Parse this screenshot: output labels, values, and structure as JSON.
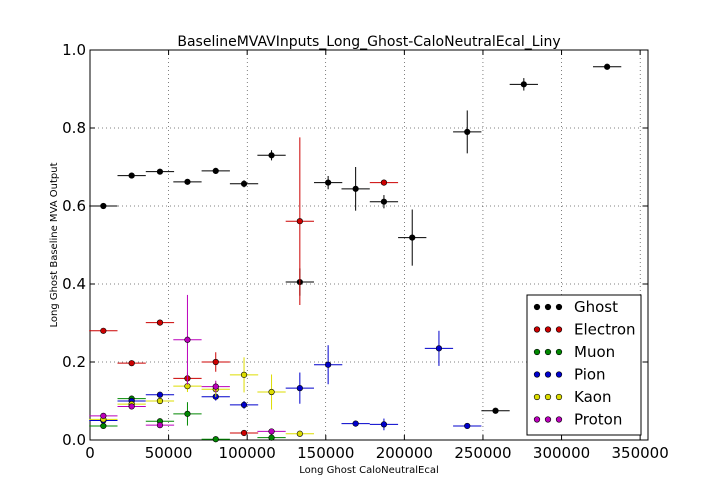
{
  "chart_data": {
    "type": "scatter",
    "title": "BaselineMVAVInputs_Long_Ghost-CaloNeutralEcal_Liny",
    "xlabel": "Long Ghost CaloNeutralEcal",
    "ylabel": "Long Ghost Baseline MVA Output",
    "xlim": [
      0,
      355000
    ],
    "ylim": [
      0,
      1.0
    ],
    "xticks": [
      0,
      50000,
      100000,
      150000,
      200000,
      250000,
      300000,
      350000
    ],
    "xtick_labels": [
      "0",
      "50000",
      "100000",
      "150000",
      "200000",
      "250000",
      "300000",
      "350000"
    ],
    "yticks": [
      0.0,
      0.2,
      0.4,
      0.6,
      0.8,
      1.0
    ],
    "ytick_labels": [
      "0.0",
      "0.2",
      "0.4",
      "0.6",
      "0.8",
      "1.0"
    ],
    "grid": true,
    "legend_position": "lower-right",
    "xerr": 9000,
    "series": [
      {
        "name": "Ghost",
        "color": "#000000",
        "x": [
          8500,
          26500,
          44500,
          62000,
          80000,
          98000,
          115500,
          133500,
          151500,
          169000,
          187000,
          205000,
          240000,
          258000,
          276000,
          329000
        ],
        "y": [
          0.6,
          0.678,
          0.688,
          0.662,
          0.69,
          0.657,
          0.73,
          0.405,
          0.66,
          0.644,
          0.611,
          0.519,
          0.79,
          0.075,
          0.912,
          0.957
        ],
        "yerr": [
          0.004,
          0.004,
          0.005,
          0.006,
          0.007,
          0.009,
          0.013,
          0.035,
          0.017,
          0.056,
          0.017,
          0.072,
          0.055,
          0.005,
          0.016,
          0.004
        ]
      },
      {
        "name": "Electron",
        "color": "#cc0000",
        "x": [
          8500,
          26500,
          44500,
          62000,
          80000,
          98000,
          133500,
          187000
        ],
        "y": [
          0.28,
          0.197,
          0.301,
          0.158,
          0.2,
          0.018,
          0.561,
          0.66
        ],
        "yerr": [
          0.004,
          0.004,
          0.007,
          0.015,
          0.025,
          0.004,
          0.215,
          0.005
        ]
      },
      {
        "name": "Muon",
        "color": "#008800",
        "x": [
          8500,
          26500,
          44500,
          62000,
          80000,
          115500
        ],
        "y": [
          0.036,
          0.106,
          0.048,
          0.067,
          0.002,
          0.006
        ],
        "yerr": [
          0.004,
          0.006,
          0.007,
          0.03,
          0.004,
          0.004
        ]
      },
      {
        "name": "Pion",
        "color": "#0000cc",
        "x": [
          8500,
          26500,
          44500,
          80000,
          98000,
          133500,
          151500,
          169000,
          187000,
          222000,
          240000
        ],
        "y": [
          0.05,
          0.1,
          0.116,
          0.111,
          0.09,
          0.133,
          0.193,
          0.042,
          0.04,
          0.235,
          0.036
        ],
        "yerr": [
          0.003,
          0.004,
          0.006,
          0.01,
          0.01,
          0.04,
          0.05,
          0.004,
          0.015,
          0.045,
          0.003
        ]
      },
      {
        "name": "Kaon",
        "color": "#dddd00",
        "x": [
          8500,
          26500,
          44500,
          62000,
          80000,
          98000,
          115500,
          133500
        ],
        "y": [
          0.053,
          0.092,
          0.1,
          0.138,
          0.13,
          0.167,
          0.123,
          0.016
        ],
        "yerr": [
          0.004,
          0.006,
          0.008,
          0.015,
          0.02,
          0.045,
          0.045,
          0.004
        ]
      },
      {
        "name": "Proton",
        "color": "#bb00bb",
        "x": [
          8500,
          26500,
          44500,
          62000,
          80000,
          115500
        ],
        "y": [
          0.062,
          0.086,
          0.038,
          0.257,
          0.137,
          0.022
        ],
        "yerr": [
          0.005,
          0.006,
          0.007,
          0.115,
          0.015,
          0.005
        ]
      }
    ]
  }
}
